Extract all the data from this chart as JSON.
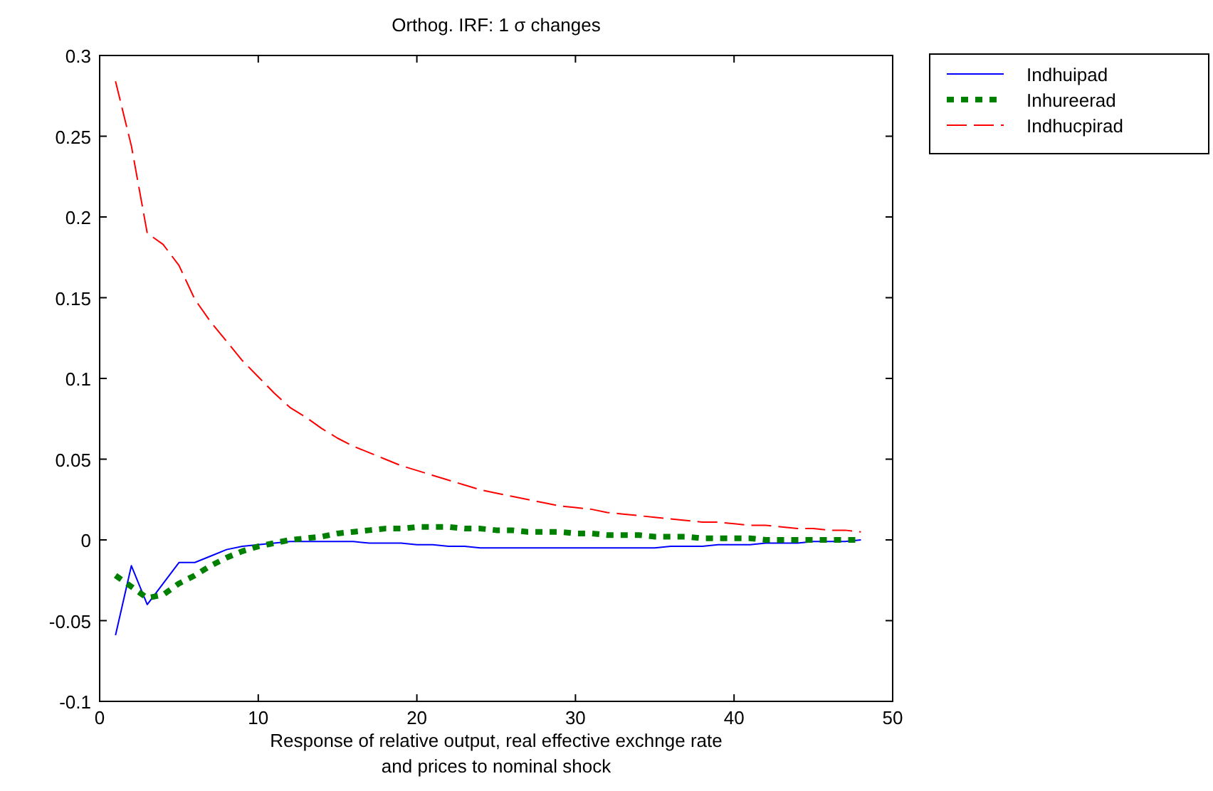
{
  "chart_data": {
    "type": "line",
    "title": "Orthog. IRF: 1 σ changes",
    "xlabel": "Response of relative output, real effective exchnge rate\nand prices to nominal shock",
    "x": [
      1,
      2,
      3,
      4,
      5,
      6,
      7,
      8,
      9,
      10,
      11,
      12,
      13,
      14,
      15,
      16,
      17,
      18,
      19,
      20,
      21,
      22,
      23,
      24,
      25,
      26,
      27,
      28,
      29,
      30,
      31,
      32,
      33,
      34,
      35,
      36,
      37,
      38,
      39,
      40,
      41,
      42,
      43,
      44,
      45,
      46,
      47,
      48
    ],
    "xlim": [
      0,
      50
    ],
    "xticks": [
      0,
      10,
      20,
      30,
      40,
      50
    ],
    "ylim": [
      -0.1,
      0.3
    ],
    "yticks": [
      -0.1,
      -0.05,
      0,
      0.05,
      0.1,
      0.15,
      0.2,
      0.25,
      0.3
    ],
    "grid": false,
    "legend": "top right",
    "marker": "none",
    "series": [
      {
        "name": "Indhuipad",
        "color": "#0000ff",
        "line_style": "solid",
        "values": [
          -0.059,
          -0.016,
          -0.04,
          -0.027,
          -0.014,
          -0.014,
          -0.01,
          -0.006,
          -0.004,
          -0.003,
          -0.002,
          -0.001,
          -0.001,
          -0.001,
          -0.001,
          -0.001,
          -0.002,
          -0.002,
          -0.002,
          -0.003,
          -0.003,
          -0.004,
          -0.004,
          -0.005,
          -0.005,
          -0.005,
          -0.005,
          -0.005,
          -0.005,
          -0.005,
          -0.005,
          -0.005,
          -0.005,
          -0.005,
          -0.005,
          -0.004,
          -0.004,
          -0.004,
          -0.003,
          -0.003,
          -0.003,
          -0.002,
          -0.002,
          -0.002,
          -0.001,
          -0.001,
          -0.001,
          0
        ]
      },
      {
        "name": "Inhureerad",
        "color": "#008000",
        "line_style": "dotted",
        "values": [
          -0.022,
          -0.029,
          -0.036,
          -0.034,
          -0.027,
          -0.022,
          -0.016,
          -0.011,
          -0.007,
          -0.004,
          -0.002,
          0,
          0.001,
          0.002,
          0.004,
          0.005,
          0.006,
          0.007,
          0.007,
          0.008,
          0.008,
          0.008,
          0.007,
          0.007,
          0.006,
          0.006,
          0.005,
          0.005,
          0.005,
          0.004,
          0.004,
          0.003,
          0.003,
          0.003,
          0.002,
          0.002,
          0.002,
          0.001,
          0.001,
          0.001,
          0.001,
          0,
          0,
          0,
          0,
          0,
          0,
          0
        ]
      },
      {
        "name": "Indhucpirad",
        "color": "#ff0000",
        "line_style": "dashed",
        "values": [
          0.284,
          0.244,
          0.19,
          0.183,
          0.17,
          0.149,
          0.135,
          0.123,
          0.111,
          0.101,
          0.091,
          0.082,
          0.076,
          0.069,
          0.063,
          0.058,
          0.054,
          0.05,
          0.046,
          0.043,
          0.04,
          0.037,
          0.034,
          0.031,
          0.029,
          0.027,
          0.025,
          0.023,
          0.021,
          0.02,
          0.019,
          0.017,
          0.016,
          0.015,
          0.014,
          0.013,
          0.012,
          0.011,
          0.011,
          0.01,
          0.009,
          0.009,
          0.008,
          0.007,
          0.007,
          0.006,
          0.006,
          0.005
        ]
      }
    ]
  }
}
